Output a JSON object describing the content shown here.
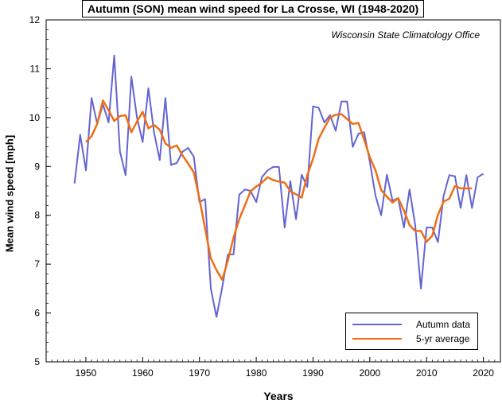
{
  "chart_data": {
    "type": "line",
    "title": "Autumn (SON) mean wind speed for La Crosse, WI (1948-2020)",
    "source_note": "Wisconsin State Climatology Office",
    "xlabel": "Years",
    "ylabel": "Mean wind speed [mph]",
    "xlim": [
      1943,
      2023
    ],
    "ylim": [
      5,
      12
    ],
    "x_ticks": [
      1950,
      1960,
      1970,
      1980,
      1990,
      2000,
      2010,
      2020
    ],
    "y_ticks": [
      5,
      6,
      7,
      8,
      9,
      10,
      11,
      12
    ],
    "legend_position": "bottom-right",
    "grid": false,
    "series": [
      {
        "name": "Autumn data",
        "color": "#6464d2",
        "x": [
          1948,
          1949,
          1950,
          1951,
          1952,
          1953,
          1954,
          1955,
          1956,
          1957,
          1958,
          1959,
          1960,
          1961,
          1962,
          1963,
          1964,
          1965,
          1966,
          1967,
          1968,
          1969,
          1970,
          1971,
          1972,
          1973,
          1974,
          1975,
          1976,
          1977,
          1978,
          1979,
          1980,
          1981,
          1982,
          1983,
          1984,
          1985,
          1986,
          1987,
          1988,
          1989,
          1990,
          1991,
          1992,
          1993,
          1994,
          1995,
          1996,
          1997,
          1998,
          1999,
          2000,
          2001,
          2002,
          2003,
          2004,
          2005,
          2006,
          2007,
          2008,
          2009,
          2010,
          2011,
          2012,
          2013,
          2014,
          2015,
          2016,
          2017,
          2018,
          2019,
          2020
        ],
        "y": [
          8.65,
          9.65,
          8.92,
          10.4,
          9.87,
          10.27,
          9.9,
          11.27,
          9.3,
          8.82,
          10.84,
          10.0,
          9.5,
          10.6,
          9.7,
          9.13,
          10.4,
          9.03,
          9.07,
          9.3,
          9.38,
          9.2,
          8.27,
          8.33,
          6.5,
          5.92,
          6.52,
          7.2,
          7.2,
          8.42,
          8.53,
          8.5,
          8.27,
          8.78,
          8.92,
          8.99,
          8.99,
          7.75,
          8.7,
          7.92,
          8.83,
          8.58,
          10.23,
          10.2,
          9.9,
          10.05,
          9.73,
          10.33,
          10.33,
          9.4,
          9.67,
          9.7,
          9.1,
          8.4,
          8.0,
          8.83,
          8.3,
          8.35,
          7.75,
          8.53,
          7.8,
          6.5,
          7.75,
          7.75,
          7.45,
          8.4,
          8.82,
          8.8,
          8.15,
          8.82,
          8.15,
          8.78,
          8.85
        ]
      },
      {
        "name": "5-yr average",
        "color": "#f06e14",
        "x": [
          1950,
          1951,
          1952,
          1953,
          1954,
          1955,
          1956,
          1957,
          1958,
          1959,
          1960,
          1961,
          1962,
          1963,
          1964,
          1965,
          1966,
          1967,
          1968,
          1969,
          1970,
          1971,
          1972,
          1973,
          1974,
          1975,
          1976,
          1977,
          1978,
          1979,
          1980,
          1981,
          1982,
          1983,
          1984,
          1985,
          1986,
          1987,
          1988,
          1989,
          1990,
          1991,
          1992,
          1993,
          1994,
          1995,
          1996,
          1997,
          1998,
          1999,
          2000,
          2001,
          2002,
          2003,
          2004,
          2005,
          2006,
          2007,
          2008,
          2009,
          2010,
          2011,
          2012,
          2013,
          2014,
          2015,
          2016,
          2017,
          2018
        ],
        "y": [
          9.5,
          9.62,
          9.87,
          10.35,
          10.15,
          9.93,
          10.03,
          10.05,
          9.7,
          9.92,
          10.12,
          9.78,
          9.85,
          9.75,
          9.47,
          9.38,
          9.43,
          9.23,
          9.06,
          8.88,
          8.34,
          7.72,
          7.12,
          6.88,
          6.68,
          7.07,
          7.54,
          7.92,
          8.2,
          8.49,
          8.59,
          8.67,
          8.78,
          8.72,
          8.69,
          8.67,
          8.49,
          8.43,
          8.36,
          8.82,
          9.16,
          9.57,
          9.79,
          10.0,
          10.06,
          10.07,
          9.97,
          9.87,
          9.89,
          9.55,
          9.19,
          8.92,
          8.52,
          8.38,
          8.26,
          8.35,
          8.1,
          7.8,
          7.68,
          7.68,
          7.46,
          7.58,
          8.01,
          8.28,
          8.34,
          8.6,
          8.55,
          8.55,
          8.55
        ]
      }
    ]
  }
}
